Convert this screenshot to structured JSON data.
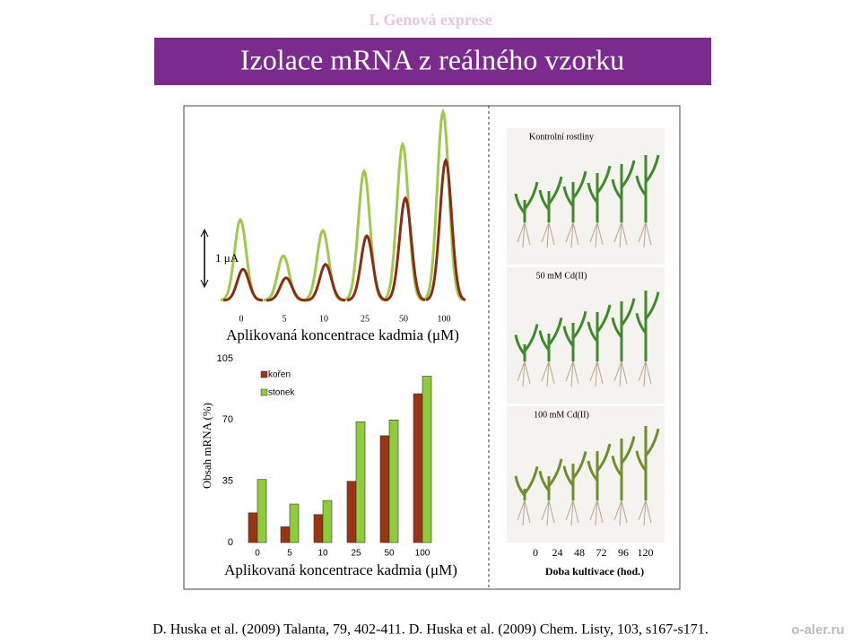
{
  "header": {
    "section": "I.    Genová exprese",
    "title": "Izolace mRNA z reálného vzorku"
  },
  "chart_data": [
    {
      "type": "peak",
      "x_label": "Aplikovaná koncentrace kadmia (μM)",
      "scale_label": "1 μA",
      "categories": [
        "0",
        "5",
        "10",
        "25",
        "50",
        "100"
      ],
      "series": [
        {
          "color": "#a0c84a",
          "values": [
            1.5,
            0.83,
            1.3,
            2.4,
            2.9,
            3.5
          ]
        },
        {
          "color": "#8b2c12",
          "values": [
            0.58,
            0.42,
            0.67,
            1.2,
            1.9,
            2.6
          ]
        }
      ]
    },
    {
      "type": "bar",
      "y_label": "Obsah mRNA (%)",
      "x_label": "Aplikovaná koncentrace kadmia (μM)",
      "categories": [
        "0",
        "5",
        "10",
        "25",
        "50",
        "100"
      ],
      "series": [
        {
          "name": "kořen",
          "color": "#9b3412",
          "values": [
            17,
            9,
            16,
            35,
            61,
            85
          ]
        },
        {
          "name": "stonek",
          "color": "#8fcc3c",
          "values": [
            36,
            22,
            24,
            69,
            70,
            95
          ]
        }
      ],
      "ylim": [
        0,
        105
      ],
      "yticks": [
        0,
        35,
        70,
        105
      ],
      "legend": "top-left"
    }
  ],
  "photo_panel": {
    "panels": [
      "Kontrolní rostliny",
      "50 mM Cd(II)",
      "100 mM Cd(II)"
    ],
    "time_ticks": [
      0,
      24,
      48,
      72,
      96,
      120
    ],
    "x_label": "Doba kultivace (hod.)"
  },
  "footer": {
    "citation": "D. Huska et al. (2009) Talanta, 79, 402-411. D. Huska et al. (2009) Chem. Listy, 103, s167-s171.",
    "logo": "o-aler.ru"
  }
}
